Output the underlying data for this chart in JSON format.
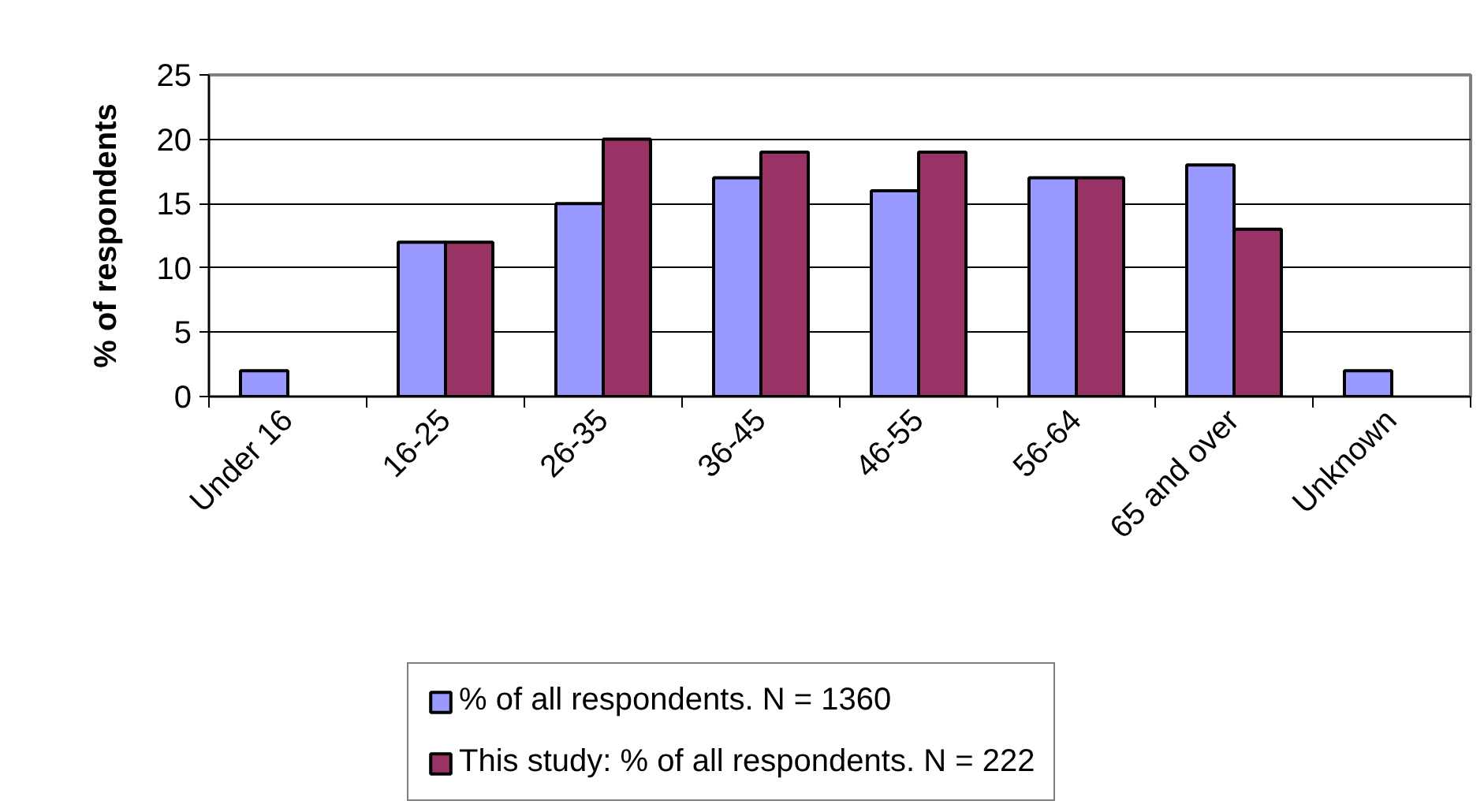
{
  "chart_data": {
    "type": "bar",
    "ylabel": "% of respondents",
    "categories": [
      "Under 16",
      "16-25",
      "26-35",
      "36-45",
      "46-55",
      "56-64",
      "65 and over",
      "Unknown"
    ],
    "series": [
      {
        "name": "% of all respondents. N = 1360",
        "color": "#9999ff",
        "values": [
          2,
          12,
          15,
          17,
          16,
          17,
          18,
          2
        ]
      },
      {
        "name": "This study: % of all respondents. N = 222",
        "color": "#993366",
        "values": [
          null,
          12,
          20,
          19,
          19,
          17,
          13,
          null
        ]
      }
    ],
    "ylim": [
      0,
      25
    ],
    "yticks": [
      0,
      5,
      10,
      15,
      20,
      25
    ],
    "grid": "y",
    "legend": "bottom"
  }
}
